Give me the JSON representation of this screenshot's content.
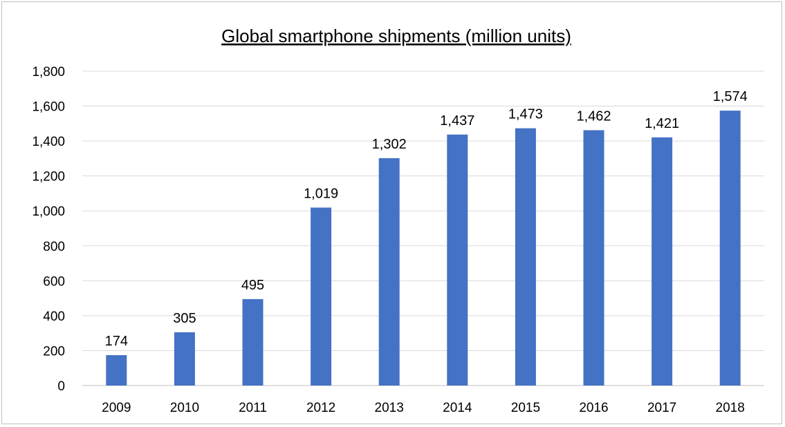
{
  "chart_data": {
    "type": "bar",
    "title": "Global smartphone shipments (million units)",
    "xlabel": "",
    "ylabel": "",
    "categories": [
      "2009",
      "2010",
      "2011",
      "2012",
      "2013",
      "2014",
      "2015",
      "2016",
      "2017",
      "2018"
    ],
    "values": [
      174,
      305,
      495,
      1019,
      1302,
      1437,
      1473,
      1462,
      1421,
      1574
    ],
    "data_labels": [
      "174",
      "305",
      "495",
      "1,019",
      "1,302",
      "1,437",
      "1,473",
      "1,462",
      "1,421",
      "1,574"
    ],
    "ylim": [
      0,
      1800
    ],
    "yticks": [
      0,
      200,
      400,
      600,
      800,
      1000,
      1200,
      1400,
      1600,
      1800
    ],
    "ytick_labels": [
      "0",
      "200",
      "400",
      "600",
      "800",
      "1,000",
      "1,200",
      "1,400",
      "1,600",
      "1,800"
    ],
    "grid": true,
    "legend": "none",
    "bar_color": "#4472c4"
  }
}
